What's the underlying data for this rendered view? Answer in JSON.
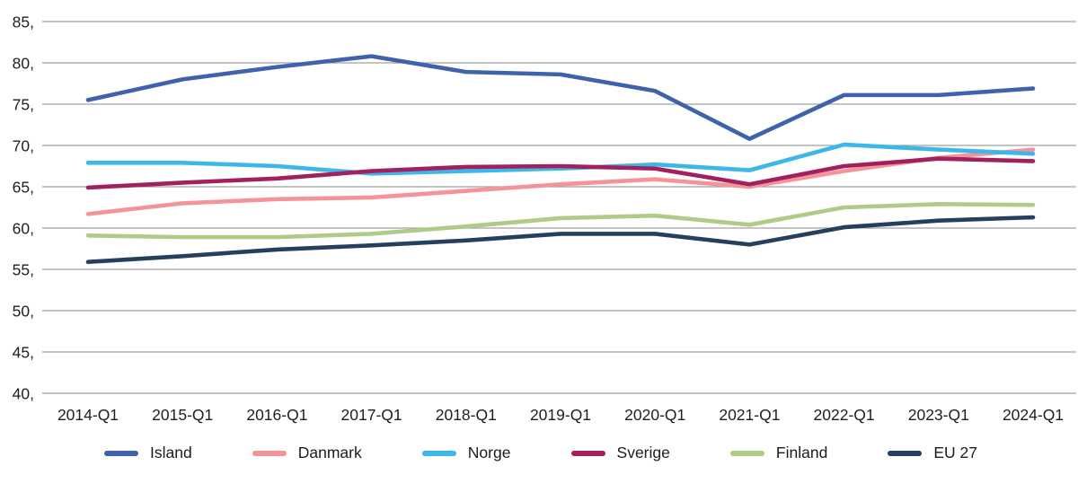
{
  "chart_data": {
    "type": "line",
    "x_labels": [
      "2014-Q1",
      "2015-Q1",
      "2016-Q1",
      "2017-Q1",
      "2018-Q1",
      "2019-Q1",
      "2020-Q1",
      "2021-Q1",
      "2022-Q1",
      "2023-Q1",
      "2024-Q1"
    ],
    "y_tick_labels": [
      "85,",
      "80,",
      "75,",
      "70,",
      "65,",
      "60,",
      "55,",
      "50,",
      "45,",
      "40,"
    ],
    "ylim": [
      40,
      85
    ],
    "y_step": 5,
    "grid": "horizontal-only",
    "legend_position": "bottom",
    "series": [
      {
        "name": "Island",
        "color": "#3F62AD",
        "values": [
          75.5,
          78.0,
          79.5,
          80.8,
          78.9,
          78.6,
          76.6,
          70.8,
          76.1,
          76.1,
          76.9
        ]
      },
      {
        "name": "Danmark",
        "color": "#F5939B",
        "values": [
          61.7,
          63.0,
          63.5,
          63.7,
          64.5,
          65.3,
          65.9,
          65.0,
          66.9,
          68.5,
          69.5
        ]
      },
      {
        "name": "Norge",
        "color": "#3DB7E9",
        "values": [
          67.9,
          67.9,
          67.5,
          66.6,
          66.9,
          67.2,
          67.7,
          67.0,
          70.1,
          69.5,
          69.0
        ]
      },
      {
        "name": "Sverige",
        "color": "#A3205F",
        "values": [
          64.9,
          65.5,
          66.0,
          66.9,
          67.4,
          67.5,
          67.2,
          65.3,
          67.5,
          68.4,
          68.1
        ]
      },
      {
        "name": "Finland",
        "color": "#AECB87",
        "values": [
          59.1,
          58.9,
          58.9,
          59.3,
          60.2,
          61.2,
          61.5,
          60.4,
          62.5,
          62.9,
          62.8
        ]
      },
      {
        "name": "EU 27",
        "color": "#24405E",
        "values": [
          55.9,
          56.6,
          57.4,
          57.9,
          58.5,
          59.3,
          59.3,
          58.0,
          60.1,
          60.9,
          61.3
        ]
      }
    ]
  },
  "colors": {
    "gridline": "#A0A0A0",
    "axis_text": "#1F1F1F",
    "background": "#FFFFFF"
  }
}
